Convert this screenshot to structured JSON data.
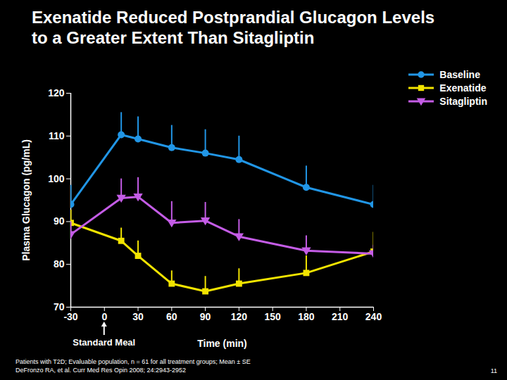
{
  "chart_data": {
    "type": "line",
    "title": "Exenatide Reduced Postprandial Glucagon Levels to a Greater Extent Than Sitagliptin",
    "x_label": "Time (min)",
    "y_label": "Plasma Glucagon (pg/mL)",
    "x": [
      -30,
      15,
      30,
      60,
      90,
      120,
      180,
      240
    ],
    "series": [
      {
        "name": "Baseline",
        "color": "#2196e6",
        "marker": "circle",
        "values": [
          94,
          110.3,
          109.3,
          107.3,
          106,
          104.5,
          98,
          94
        ],
        "errors": [
          4.5,
          5.2,
          5.2,
          5.2,
          5.5,
          5.5,
          5,
          4.5
        ]
      },
      {
        "name": "Exenatide",
        "color": "#f2e400",
        "marker": "square",
        "values": [
          89.7,
          85.5,
          82,
          75.5,
          73.7,
          75.5,
          78,
          83
        ],
        "errors": [
          3,
          3,
          3.5,
          3,
          3.5,
          3.5,
          4,
          4.5
        ]
      },
      {
        "name": "Sitagliptin",
        "color": "#c45ce6",
        "marker": "triangle-down",
        "values": [
          87,
          95.5,
          95.8,
          89.7,
          90.2,
          86.5,
          83.2,
          82.5
        ],
        "errors": [
          3,
          4.5,
          4.5,
          5,
          4.3,
          4,
          3.5,
          2
        ]
      }
    ],
    "xlim": [
      -30,
      240
    ],
    "xticks": [
      -30,
      0,
      30,
      60,
      90,
      120,
      150,
      180,
      210,
      240
    ],
    "ylim": [
      70,
      120
    ],
    "yticks": [
      70,
      80,
      90,
      100,
      110,
      120
    ],
    "grid": false,
    "legend": "top-right",
    "annotations": [
      {
        "text": "Standard Meal",
        "x": 0
      }
    ],
    "footnotes": [
      "Patients with T2D; Evaluable population, n = 61 for all treatment groups; Mean ± SE",
      "DeFronzo RA, et al. Curr Med Res Opin 2008; 24:2943-2952"
    ],
    "page_number": "11"
  }
}
